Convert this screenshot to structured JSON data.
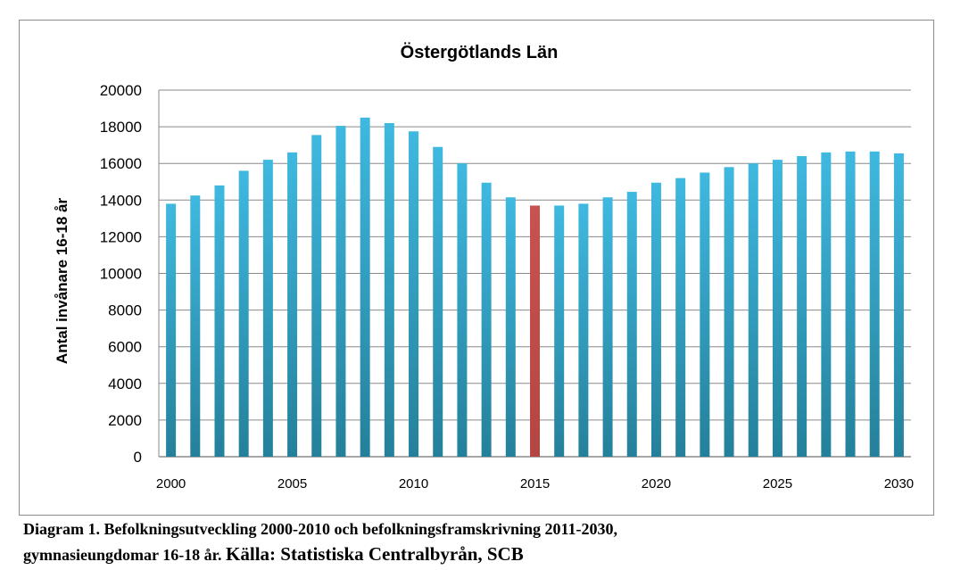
{
  "chart_data": {
    "type": "bar",
    "title": "Östergötlands Län",
    "ylabel": "Antal invånare 16-18 år",
    "xlabel": "",
    "ylim": [
      0,
      20000
    ],
    "yticks": [
      0,
      2000,
      4000,
      6000,
      8000,
      10000,
      12000,
      14000,
      16000,
      18000,
      20000
    ],
    "xtick_labels": [
      "2000",
      "2005",
      "2010",
      "2015",
      "2020",
      "2025",
      "2030"
    ],
    "grid": true,
    "legend": "none",
    "categories": [
      2000,
      2001,
      2002,
      2003,
      2004,
      2005,
      2006,
      2007,
      2008,
      2009,
      2010,
      2011,
      2012,
      2013,
      2014,
      2015,
      2016,
      2017,
      2018,
      2019,
      2020,
      2021,
      2022,
      2023,
      2024,
      2025,
      2026,
      2027,
      2028,
      2029,
      2030
    ],
    "values": [
      13800,
      14250,
      14800,
      15600,
      16200,
      16600,
      17550,
      18050,
      18500,
      18200,
      17750,
      16900,
      16000,
      14950,
      14150,
      13700,
      13700,
      13800,
      14150,
      14450,
      14950,
      15200,
      15500,
      15800,
      16000,
      16200,
      16400,
      16600,
      16650,
      16650,
      16550
    ],
    "highlight_category": 2015,
    "colors": {
      "bar": "#3ab1d6",
      "bar_dark": "#26849f",
      "highlight": "#c0504d",
      "grid": "#8a8a8a"
    }
  },
  "caption": {
    "line1": "Diagram 1. Befolkningsutveckling 2000-2010 och befolkningsframskrivning 2011-2030,",
    "line2_a": "gymnasieungdomar 16-18 år. ",
    "line2_b": "Källa: Statistiska Centralbyrån, SCB"
  }
}
